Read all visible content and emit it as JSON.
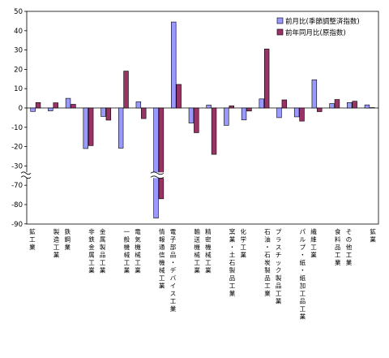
{
  "chart_data": {
    "type": "bar",
    "categories": [
      "鉱工業",
      "製造工業",
      "鉄鋼業",
      "非鉄金属工業",
      "金属製品工業",
      "一般機械工業",
      "電気機械工業",
      "情報通信機械工業",
      "電子部品・デバイス工業",
      "輸送機械工業",
      "精密機械工業",
      "窯業・土石製品工業",
      "化学工業",
      "石油・石炭製品工業",
      "プラスチック製品工業",
      "パルプ・紙・紙加工品工業",
      "繊維工業",
      "食料品工業",
      "その他工業",
      "鉱業"
    ],
    "series": [
      {
        "name": "前月比(季節調整済指数)",
        "color": "#9999ff",
        "values": [
          -1.8,
          -1.5,
          5.0,
          -21.0,
          -4.4,
          -20.8,
          3.2,
          -87.0,
          44.5,
          -7.8,
          1.5,
          -9.0,
          -6.2,
          4.7,
          -5.0,
          -4.6,
          14.6,
          2.3,
          2.8,
          1.6
        ]
      },
      {
        "name": "前年同月比(原指数)",
        "color": "#993366",
        "values": [
          2.8,
          2.7,
          1.9,
          -19.5,
          -6.3,
          19.1,
          -5.5,
          -77.0,
          12.2,
          -12.8,
          -24.0,
          1.1,
          -1.6,
          30.5,
          4.2,
          -6.8,
          -1.9,
          4.4,
          3.5,
          0.2
        ]
      }
    ],
    "ylim": [
      -90,
      50
    ],
    "yticks": [
      "50",
      "40",
      "30",
      "20",
      "10",
      "0",
      "-10",
      "-20",
      "-30",
      "-70",
      "-80",
      "-90"
    ],
    "axis_break": [
      -60,
      -30
    ],
    "legend": "top-right"
  }
}
